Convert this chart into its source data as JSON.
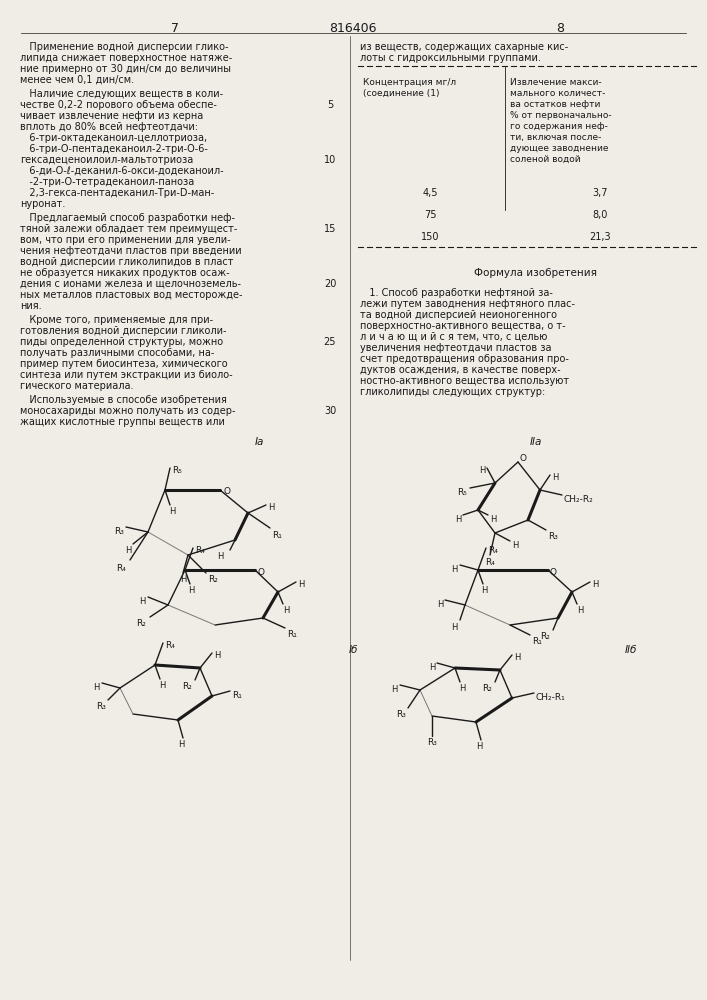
{
  "bg_color": "#f0ede6",
  "text_color": "#1a1a1a",
  "page_left": "7",
  "page_center": "816406",
  "page_right": "8",
  "font_size": 7.0,
  "col_div": 0.495
}
